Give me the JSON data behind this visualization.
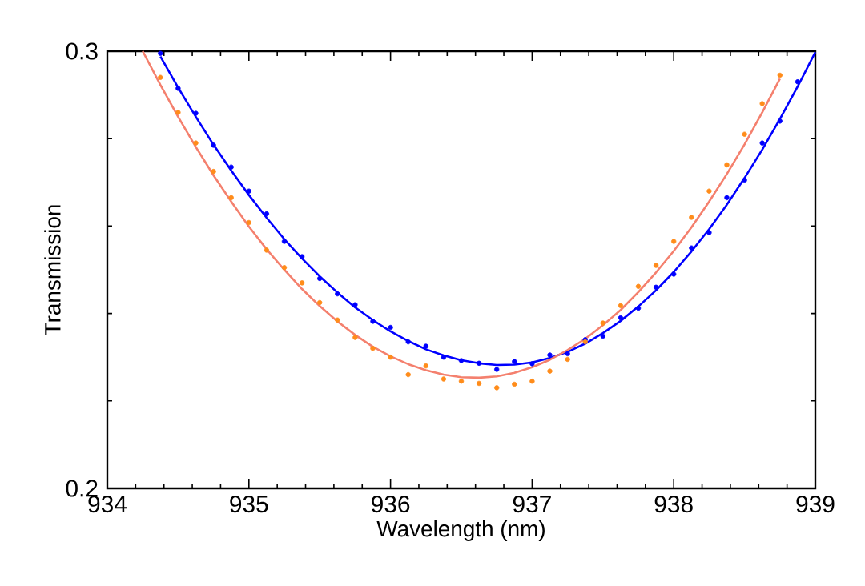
{
  "chart_data": {
    "type": "scatter",
    "xlabel": "Wavelength (nm)",
    "ylabel": "Transmission",
    "xlim": [
      934,
      939
    ],
    "ylim": [
      0.2,
      0.3
    ],
    "xticks": [
      934,
      935,
      936,
      937,
      938,
      939
    ],
    "yticks": [
      0.2,
      0.3
    ],
    "series": [
      {
        "marker": "circle",
        "color": "#0000ff",
        "x": [
          934.375,
          934.5,
          934.625,
          934.75,
          934.875,
          935.0,
          935.125,
          935.25,
          935.375,
          935.5,
          935.625,
          935.75,
          935.875,
          936.0,
          936.125,
          936.25,
          936.375,
          936.5,
          936.625,
          936.75,
          936.875,
          937.0,
          937.125,
          937.25,
          937.375,
          937.5,
          937.625,
          937.75,
          937.875,
          938.0,
          938.125,
          938.25,
          938.375,
          938.5,
          938.625,
          938.75,
          938.875
        ],
        "values": [
          0.2995,
          0.2915,
          0.2858,
          0.2785,
          0.2735,
          0.268,
          0.2628,
          0.2565,
          0.253,
          0.248,
          0.2445,
          0.242,
          0.2382,
          0.2368,
          0.2335,
          0.2325,
          0.23,
          0.2292,
          0.2286,
          0.2272,
          0.229,
          0.2285,
          0.2305,
          0.2308,
          0.234,
          0.2348,
          0.239,
          0.2412,
          0.246,
          0.249,
          0.255,
          0.2585,
          0.2665,
          0.2705,
          0.279,
          0.284,
          0.293
        ]
      },
      {
        "type": "line",
        "marker": "none",
        "color": "#0000ff",
        "x": [
          934.375,
          934.5,
          934.625,
          934.75,
          934.875,
          935.0,
          935.125,
          935.25,
          935.375,
          935.5,
          935.625,
          935.75,
          935.875,
          936.0,
          936.125,
          936.25,
          936.375,
          936.5,
          936.625,
          936.75,
          936.875,
          937.0,
          937.125,
          937.25,
          937.375,
          937.5,
          937.625,
          937.75,
          937.875,
          938.0,
          938.125,
          938.25,
          938.375,
          938.5,
          938.625,
          938.75,
          938.875,
          939.0
        ],
        "values": [
          0.2988,
          0.2917,
          0.285,
          0.2786,
          0.2727,
          0.2671,
          0.2619,
          0.257,
          0.2526,
          0.2485,
          0.2448,
          0.2414,
          0.2385,
          0.2359,
          0.2337,
          0.2318,
          0.2304,
          0.2293,
          0.2286,
          0.2282,
          0.2283,
          0.2288,
          0.2298,
          0.2312,
          0.2331,
          0.2355,
          0.2383,
          0.2416,
          0.2453,
          0.2495,
          0.2542,
          0.2593,
          0.2649,
          0.271,
          0.2775,
          0.2845,
          0.2919,
          0.2998
        ]
      },
      {
        "marker": "circle",
        "color": "#ff8c1a",
        "x": [
          934.375,
          934.5,
          934.625,
          934.75,
          934.875,
          935.0,
          935.125,
          935.25,
          935.375,
          935.5,
          935.625,
          935.75,
          935.875,
          936.0,
          936.125,
          936.25,
          936.375,
          936.5,
          936.625,
          936.75,
          936.875,
          937.0,
          937.125,
          937.25,
          937.375,
          937.5,
          937.625,
          937.75,
          937.875,
          938.0,
          938.125,
          938.25,
          938.375,
          938.5,
          938.625,
          938.75
        ],
        "values": [
          0.294,
          0.286,
          0.279,
          0.2725,
          0.2665,
          0.2608,
          0.2545,
          0.2505,
          0.247,
          0.2425,
          0.2385,
          0.2345,
          0.232,
          0.23,
          0.226,
          0.228,
          0.225,
          0.2245,
          0.224,
          0.223,
          0.2238,
          0.2245,
          0.2268,
          0.2295,
          0.2335,
          0.2378,
          0.2418,
          0.2462,
          0.251,
          0.2565,
          0.262,
          0.268,
          0.274,
          0.281,
          0.288,
          0.2945
        ]
      },
      {
        "type": "line",
        "marker": "none",
        "color": "#f4806e",
        "x": [
          934.25,
          934.375,
          934.5,
          934.625,
          934.75,
          934.875,
          935.0,
          935.125,
          935.25,
          935.375,
          935.5,
          935.625,
          935.75,
          935.875,
          936.0,
          936.125,
          936.25,
          936.375,
          936.5,
          936.625,
          936.75,
          936.875,
          937.0,
          937.125,
          937.25,
          937.375,
          937.5,
          937.625,
          937.75,
          937.875,
          938.0,
          938.125,
          938.25,
          938.375,
          938.5,
          938.625,
          938.75
        ],
        "values": [
          0.3,
          0.2923,
          0.285,
          0.2781,
          0.2716,
          0.2656,
          0.2599,
          0.2547,
          0.25,
          0.2456,
          0.2417,
          0.2382,
          0.2351,
          0.2324,
          0.2302,
          0.2284,
          0.227,
          0.226,
          0.2254,
          0.2253,
          0.2256,
          0.2264,
          0.2277,
          0.2294,
          0.2316,
          0.2342,
          0.2373,
          0.2408,
          0.2449,
          0.2494,
          0.2543,
          0.2597,
          0.2656,
          0.2719,
          0.2787,
          0.286,
          0.2937
        ]
      }
    ]
  }
}
